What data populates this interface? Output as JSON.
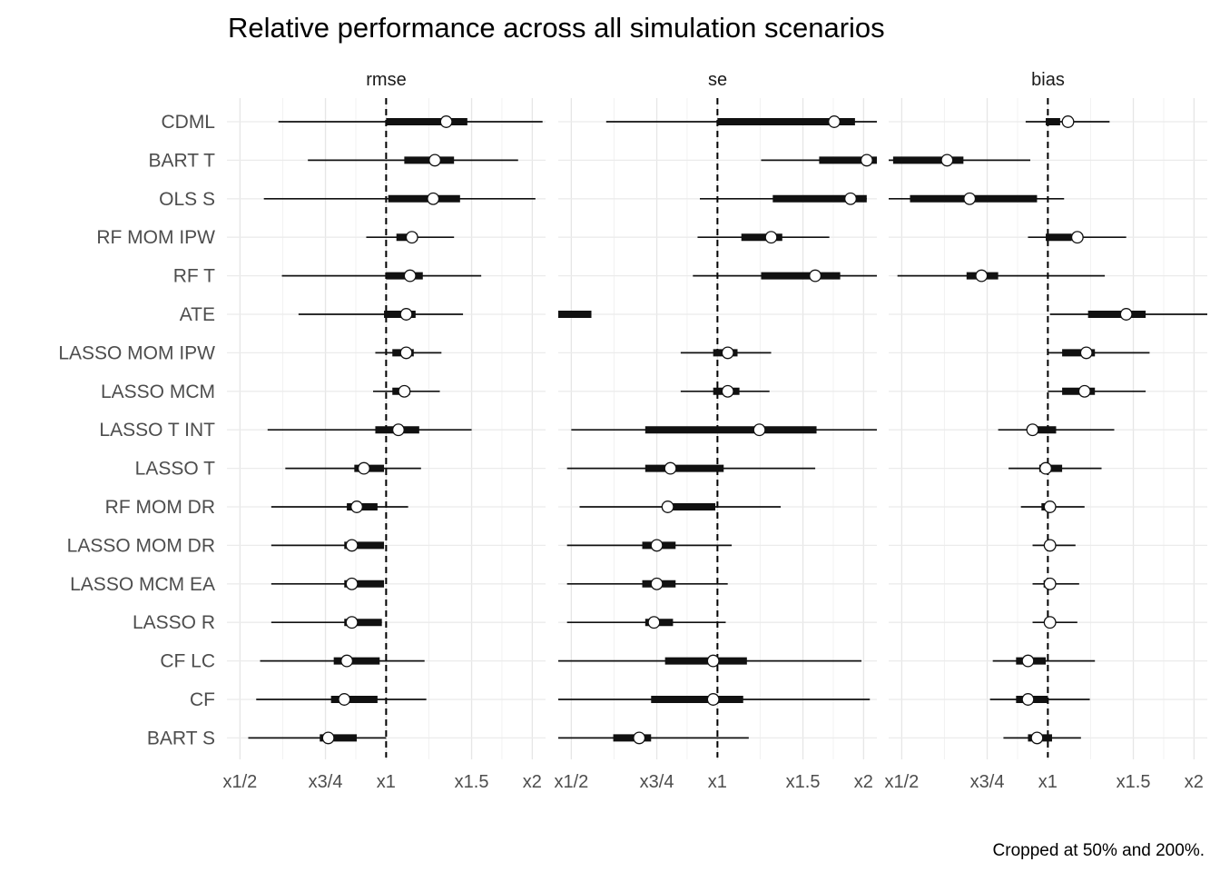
{
  "chart_data": {
    "type": "interval",
    "title": "Relative performance across all simulation scenarios",
    "caption": "Cropped at 50% and 200%.",
    "xscale": "log2",
    "xlim": [
      0.47,
      2.13
    ],
    "xticks": [
      0.5,
      0.75,
      1,
      1.5,
      2
    ],
    "xtick_labels": [
      "x1/2",
      "x3/4",
      "x1",
      "x1.5",
      "x2"
    ],
    "reference_line": 1,
    "grid": true,
    "methods": [
      "CDML",
      "BART T",
      "OLS S",
      "RF MOM IPW",
      "RF T",
      "ATE",
      "LASSO MOM IPW",
      "LASSO MCM",
      "LASSO T INT",
      "LASSO T",
      "RF MOM DR",
      "LASSO MOM DR",
      "LASSO MCM EA",
      "LASSO R",
      "CF LC",
      "CF",
      "BART S"
    ],
    "panels": [
      {
        "name": "rmse",
        "rows": [
          {
            "wlo": 0.6,
            "lo": 1.0,
            "hi": 1.47,
            "whi": 2.1,
            "mean": 1.33
          },
          {
            "wlo": 0.69,
            "lo": 1.09,
            "hi": 1.38,
            "whi": 1.87,
            "mean": 1.26
          },
          {
            "wlo": 0.56,
            "lo": 1.01,
            "hi": 1.42,
            "whi": 2.03,
            "mean": 1.25
          },
          {
            "wlo": 0.91,
            "lo": 1.05,
            "hi": 1.16,
            "whi": 1.38,
            "mean": 1.13
          },
          {
            "wlo": 0.61,
            "lo": 1.0,
            "hi": 1.19,
            "whi": 1.57,
            "mean": 1.12
          },
          {
            "wlo": 0.66,
            "lo": 0.99,
            "hi": 1.15,
            "whi": 1.44,
            "mean": 1.1
          },
          {
            "wlo": 0.95,
            "lo": 1.03,
            "hi": 1.14,
            "whi": 1.3,
            "mean": 1.1
          },
          {
            "wlo": 0.94,
            "lo": 1.03,
            "hi": 1.12,
            "whi": 1.29,
            "mean": 1.09
          },
          {
            "wlo": 0.57,
            "lo": 0.95,
            "hi": 1.17,
            "whi": 1.5,
            "mean": 1.06
          },
          {
            "wlo": 0.62,
            "lo": 0.86,
            "hi": 0.99,
            "whi": 1.18,
            "mean": 0.9
          },
          {
            "wlo": 0.58,
            "lo": 0.83,
            "hi": 0.96,
            "whi": 1.11,
            "mean": 0.87
          },
          {
            "wlo": 0.58,
            "lo": 0.82,
            "hi": 0.99,
            "whi": 0.99,
            "mean": 0.85
          },
          {
            "wlo": 0.58,
            "lo": 0.82,
            "hi": 0.99,
            "whi": 0.99,
            "mean": 0.85
          },
          {
            "wlo": 0.58,
            "lo": 0.82,
            "hi": 0.98,
            "whi": 0.98,
            "mean": 0.85
          },
          {
            "wlo": 0.55,
            "lo": 0.78,
            "hi": 0.97,
            "whi": 1.2,
            "mean": 0.83
          },
          {
            "wlo": 0.54,
            "lo": 0.77,
            "hi": 0.96,
            "whi": 1.21,
            "mean": 0.82
          },
          {
            "wlo": 0.52,
            "lo": 0.73,
            "hi": 0.87,
            "whi": 1.0,
            "mean": 0.76
          }
        ]
      },
      {
        "name": "se",
        "rows": [
          {
            "wlo": 0.59,
            "lo": 1.0,
            "hi": 1.92,
            "whi": 2.13,
            "mean": 1.74
          },
          {
            "wlo": 1.23,
            "lo": 1.62,
            "hi": 2.13,
            "whi": 2.13,
            "mean": 2.03
          },
          {
            "wlo": 0.92,
            "lo": 1.3,
            "hi": 2.03,
            "whi": 2.03,
            "mean": 1.88
          },
          {
            "wlo": 0.91,
            "lo": 1.12,
            "hi": 1.36,
            "whi": 1.7,
            "mean": 1.29
          },
          {
            "wlo": 0.89,
            "lo": 1.23,
            "hi": 1.79,
            "whi": 2.13,
            "mean": 1.59
          },
          {
            "wlo": 0.47,
            "lo": 0.47,
            "hi": 0.55,
            "whi": 0.55,
            "mean": null
          },
          {
            "wlo": 0.84,
            "lo": 0.98,
            "hi": 1.1,
            "whi": 1.29,
            "mean": 1.05
          },
          {
            "wlo": 0.84,
            "lo": 0.98,
            "hi": 1.11,
            "whi": 1.28,
            "mean": 1.05
          },
          {
            "wlo": 0.5,
            "lo": 0.71,
            "hi": 1.6,
            "whi": 2.13,
            "mean": 1.22
          },
          {
            "wlo": 0.49,
            "lo": 0.71,
            "hi": 1.03,
            "whi": 1.59,
            "mean": 0.8
          },
          {
            "wlo": 0.52,
            "lo": 0.77,
            "hi": 0.99,
            "whi": 1.35,
            "mean": 0.79
          },
          {
            "wlo": 0.49,
            "lo": 0.7,
            "hi": 0.82,
            "whi": 1.07,
            "mean": 0.75
          },
          {
            "wlo": 0.49,
            "lo": 0.7,
            "hi": 0.82,
            "whi": 1.05,
            "mean": 0.75
          },
          {
            "wlo": 0.49,
            "lo": 0.71,
            "hi": 0.81,
            "whi": 1.04,
            "mean": 0.74
          },
          {
            "wlo": 0.47,
            "lo": 0.78,
            "hi": 1.15,
            "whi": 1.98,
            "mean": 0.98
          },
          {
            "wlo": 0.47,
            "lo": 0.73,
            "hi": 1.13,
            "whi": 2.06,
            "mean": 0.98
          },
          {
            "wlo": 0.47,
            "lo": 0.61,
            "hi": 0.73,
            "whi": 1.16,
            "mean": 0.69
          }
        ]
      },
      {
        "name": "bias",
        "rows": [
          {
            "wlo": 0.9,
            "lo": 0.99,
            "hi": 1.06,
            "whi": 1.34,
            "mean": 1.1
          },
          {
            "wlo": 0.47,
            "lo": 0.48,
            "hi": 0.67,
            "whi": 0.92,
            "mean": 0.62
          },
          {
            "wlo": 0.47,
            "lo": 0.52,
            "hi": 0.95,
            "whi": 1.08,
            "mean": 0.69
          },
          {
            "wlo": 0.91,
            "lo": 0.99,
            "hi": 1.12,
            "whi": 1.45,
            "mean": 1.15
          },
          {
            "wlo": 0.49,
            "lo": 0.68,
            "hi": 0.79,
            "whi": 1.31,
            "mean": 0.73
          },
          {
            "wlo": 1.01,
            "lo": 1.21,
            "hi": 1.59,
            "whi": 2.13,
            "mean": 1.45
          },
          {
            "wlo": 1.0,
            "lo": 1.07,
            "hi": 1.25,
            "whi": 1.62,
            "mean": 1.2
          },
          {
            "wlo": 1.0,
            "lo": 1.07,
            "hi": 1.25,
            "whi": 1.59,
            "mean": 1.19
          },
          {
            "wlo": 0.79,
            "lo": 0.93,
            "hi": 1.04,
            "whi": 1.37,
            "mean": 0.93
          },
          {
            "wlo": 0.83,
            "lo": 0.96,
            "hi": 1.07,
            "whi": 1.29,
            "mean": 0.99
          },
          {
            "wlo": 0.88,
            "lo": 0.97,
            "hi": 1.02,
            "whi": 1.19,
            "mean": 1.01
          },
          {
            "wlo": 0.93,
            "lo": 0.99,
            "hi": 1.03,
            "whi": 1.14,
            "mean": 1.01
          },
          {
            "wlo": 0.93,
            "lo": 0.98,
            "hi": 1.03,
            "whi": 1.16,
            "mean": 1.01
          },
          {
            "wlo": 0.93,
            "lo": 0.99,
            "hi": 1.03,
            "whi": 1.15,
            "mean": 1.01
          },
          {
            "wlo": 0.77,
            "lo": 0.86,
            "hi": 0.99,
            "whi": 1.25,
            "mean": 0.91
          },
          {
            "wlo": 0.76,
            "lo": 0.86,
            "hi": 1.0,
            "whi": 1.22,
            "mean": 0.91
          },
          {
            "wlo": 0.81,
            "lo": 0.91,
            "hi": 1.02,
            "whi": 1.17,
            "mean": 0.95
          }
        ]
      }
    ]
  }
}
